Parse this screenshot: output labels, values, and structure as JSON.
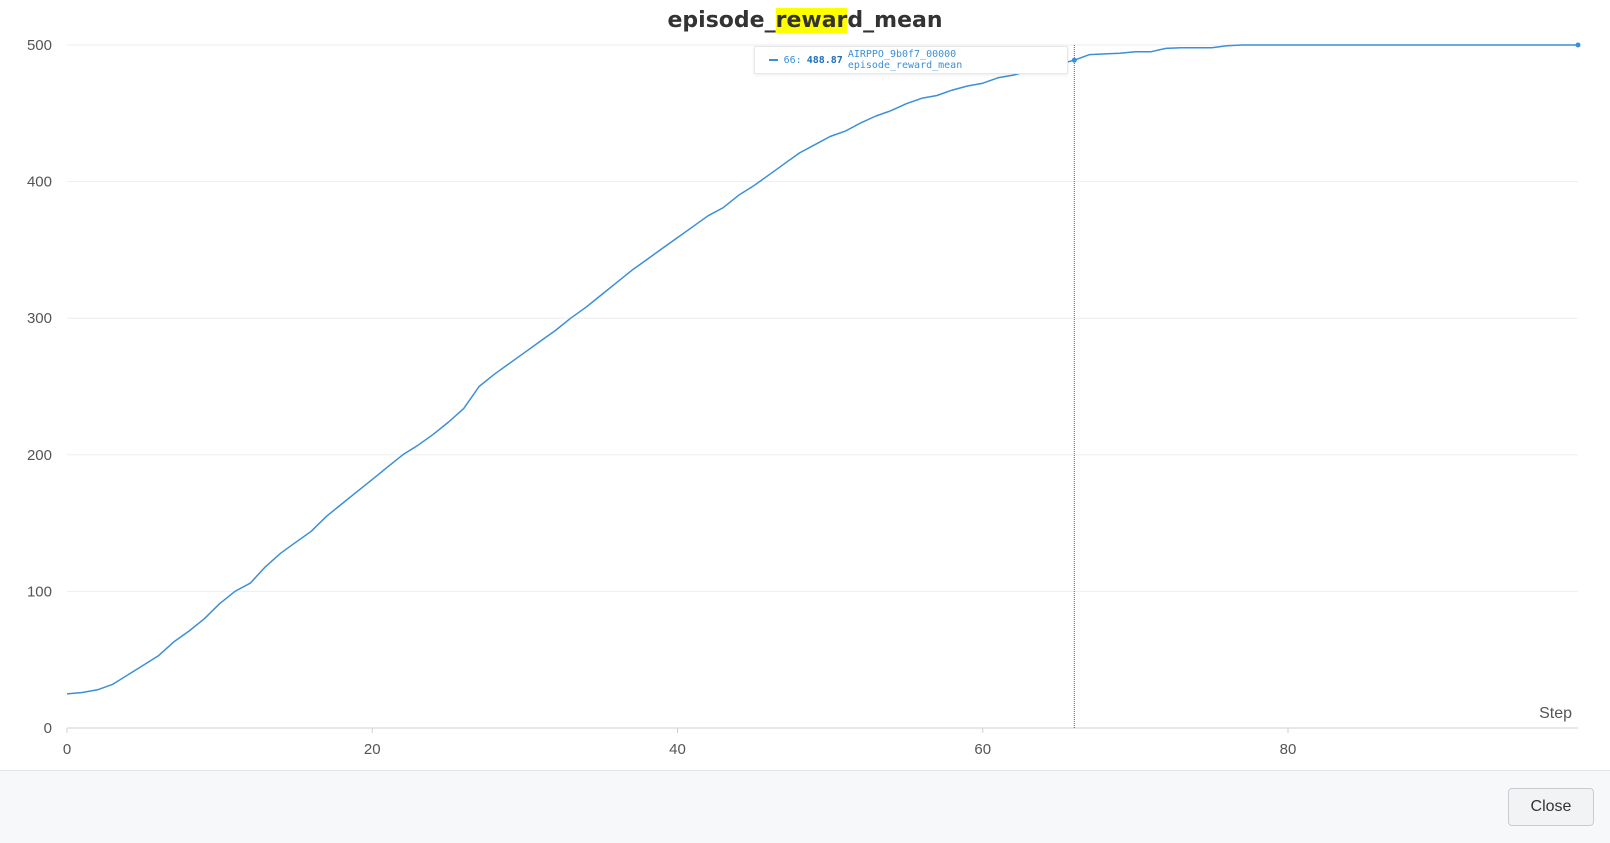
{
  "title": {
    "prefix": "episode_",
    "highlight": "rewar",
    "suffix": "d_mean"
  },
  "chart_data": {
    "type": "line",
    "title": "episode_reward_mean",
    "xlabel": "Step",
    "ylabel": "",
    "xlim": [
      0,
      99
    ],
    "ylim": [
      0,
      500
    ],
    "x_ticks": [
      0,
      20,
      40,
      60,
      80
    ],
    "y_ticks": [
      0,
      100,
      200,
      300,
      400,
      500
    ],
    "grid": "horizontal",
    "color": "#3b8fd8",
    "series": [
      {
        "values": [
          [
            0,
            25
          ],
          [
            1,
            26
          ],
          [
            2,
            28
          ],
          [
            3,
            32
          ],
          [
            4,
            39
          ],
          [
            5,
            46
          ],
          [
            6,
            53
          ],
          [
            7,
            63
          ],
          [
            8,
            71
          ],
          [
            9,
            80
          ],
          [
            10,
            91
          ],
          [
            11,
            100
          ],
          [
            12,
            106
          ],
          [
            13,
            118
          ],
          [
            14,
            128
          ],
          [
            15,
            136
          ],
          [
            16,
            144
          ],
          [
            17,
            155
          ],
          [
            18,
            164
          ],
          [
            19,
            173
          ],
          [
            20,
            182
          ],
          [
            21,
            191
          ],
          [
            22,
            200
          ],
          [
            23,
            207
          ],
          [
            24,
            215
          ],
          [
            25,
            224
          ],
          [
            26,
            234
          ],
          [
            27,
            250
          ],
          [
            28,
            259
          ],
          [
            29,
            267
          ],
          [
            30,
            275
          ],
          [
            31,
            283
          ],
          [
            32,
            291
          ],
          [
            33,
            300
          ],
          [
            34,
            308
          ],
          [
            35,
            317
          ],
          [
            36,
            326
          ],
          [
            37,
            335
          ],
          [
            38,
            343
          ],
          [
            39,
            351
          ],
          [
            40,
            359
          ],
          [
            41,
            367
          ],
          [
            42,
            375
          ],
          [
            43,
            381
          ],
          [
            44,
            390
          ],
          [
            45,
            397
          ],
          [
            46,
            405
          ],
          [
            47,
            413
          ],
          [
            48,
            421
          ],
          [
            49,
            427
          ],
          [
            50,
            433
          ],
          [
            51,
            437
          ],
          [
            52,
            443
          ],
          [
            53,
            448
          ],
          [
            54,
            452
          ],
          [
            55,
            457
          ],
          [
            56,
            461
          ],
          [
            57,
            463
          ],
          [
            58,
            467
          ],
          [
            59,
            470
          ],
          [
            60,
            472
          ],
          [
            61,
            476
          ],
          [
            62,
            478
          ],
          [
            63,
            481
          ],
          [
            64,
            484
          ],
          [
            65,
            486
          ],
          [
            66,
            488.87
          ],
          [
            67,
            493
          ],
          [
            68,
            493.5
          ],
          [
            69,
            494
          ],
          [
            70,
            495
          ],
          [
            71,
            495
          ],
          [
            72,
            497.5
          ],
          [
            73,
            498
          ],
          [
            74,
            498
          ],
          [
            75,
            498
          ],
          [
            76,
            499.5
          ],
          [
            77,
            500
          ],
          [
            78,
            500
          ],
          [
            79,
            500
          ],
          [
            80,
            500
          ],
          [
            81,
            500
          ],
          [
            82,
            500
          ],
          [
            83,
            500
          ],
          [
            84,
            500
          ],
          [
            85,
            500
          ],
          [
            86,
            500
          ],
          [
            87,
            500
          ],
          [
            88,
            500
          ],
          [
            89,
            500
          ],
          [
            90,
            500
          ],
          [
            91,
            500
          ],
          [
            92,
            500
          ],
          [
            93,
            500
          ],
          [
            94,
            500
          ],
          [
            95,
            500
          ],
          [
            96,
            500
          ],
          [
            97,
            500
          ],
          [
            98,
            500
          ],
          [
            99,
            500
          ]
        ]
      }
    ],
    "hover": {
      "step": 66,
      "value": "488.87",
      "label": "AIRPPO_9b0f7_00000 episode_reward_mean"
    }
  },
  "footer": {
    "close_label": "Close"
  }
}
